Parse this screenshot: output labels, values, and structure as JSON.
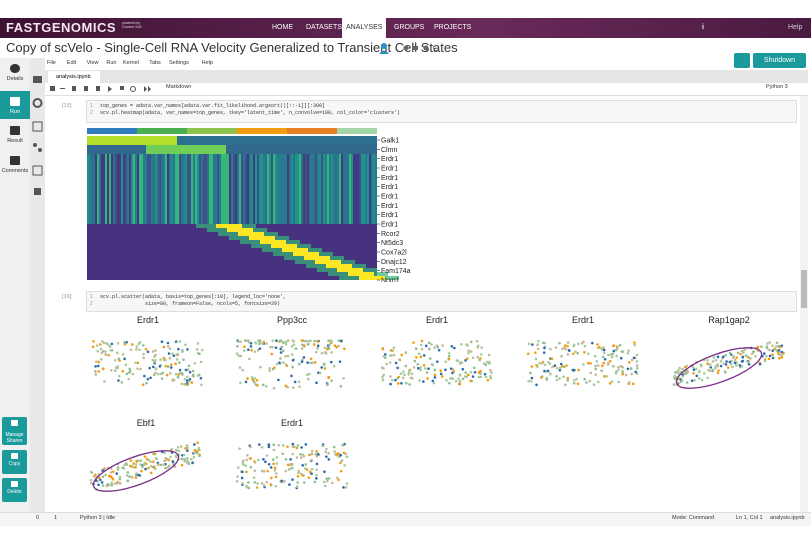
{
  "navbar": {
    "brand": "FASTGENOMICS",
    "powered": "powered by Comma Soft",
    "items": [
      "HOME",
      "DATASETS",
      "ANALYSES",
      "GROUPS",
      "PROJECTS"
    ],
    "info": "i",
    "help": "Help"
  },
  "header": {
    "title": "Copy of scVelo - Single-Cell RNA Velocity Generalized to Transient Cell States",
    "shutdown": "Shutdown"
  },
  "sidebar": {
    "items": [
      "Details",
      "Run",
      "Result",
      "Comments"
    ],
    "actions": [
      "Manage Shares",
      "Copy",
      "Delete"
    ]
  },
  "menu": [
    "File",
    "Edit",
    "View",
    "Run",
    "Kernel",
    "Tabs",
    "Settings",
    "Help"
  ],
  "tab": "analysis.ipynb",
  "toolbar": {
    "cell_type": "Markdown",
    "kernel": "Python 3"
  },
  "cells": [
    {
      "prompt": "[15]:",
      "code": [
        {
          "n": "1",
          "text": "top_genes = adata.var_names[adata.var.fit_likelihood.argsort()[::-1]][:300]"
        },
        {
          "n": "2",
          "text": "scv.pl.heatmap(adata, var_names=top_genes, tkey='latent_time', n_convolve=100, col_color='clusters')"
        }
      ],
      "genes": [
        "Galk1",
        "Clmn",
        "Erdr1",
        "Erdr1",
        "Erdr1",
        "Erdr1",
        "Erdr1",
        "Erdr1",
        "Erdr1",
        "Erdr1",
        "Rcor2",
        "Nt5dc3",
        "Cox7a2l",
        "Dnajc12",
        "Fam174a",
        "Nrxn1"
      ]
    },
    {
      "prompt": "[16]:",
      "code": [
        {
          "n": "1",
          "text": "scv.pl.scatter(adata, basis=top_genes[:10], legend_loc='none',"
        },
        {
          "n": "2",
          "text": "               size=80, frameon=False, ncols=5, fontsize=20)"
        }
      ],
      "plot_titles": [
        "Erdr1",
        "Ppp3cc",
        "Erdr1",
        "Erdr1",
        "Rap1gap2",
        "Ebf1",
        "Erdr1"
      ]
    }
  ],
  "status": {
    "left": [
      "0",
      "1",
      "Python 3 | Idle"
    ],
    "right": [
      "Mode: Command",
      "Ln 1, Col 1",
      "analysis.ipynb"
    ]
  }
}
